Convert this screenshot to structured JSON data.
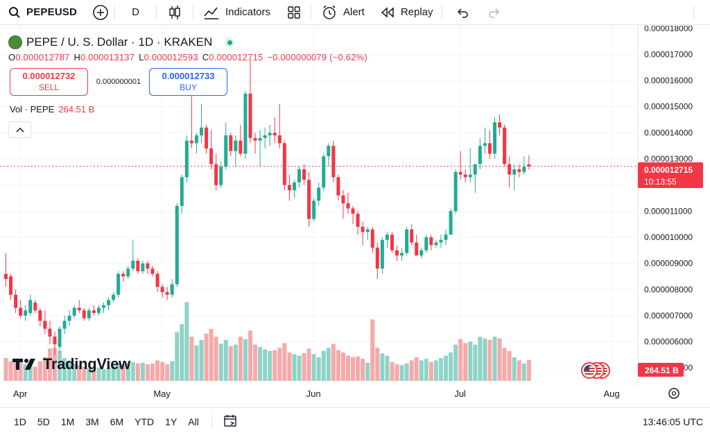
{
  "toolbar": {
    "symbol": "PEPEUSD",
    "interval": "D",
    "indicators_label": "Indicators",
    "alert_label": "Alert",
    "replay_label": "Replay"
  },
  "legend": {
    "title": "PEPE / U. S. Dollar · 1D · KRAKEN",
    "open_key": "O",
    "open": "0.000012787",
    "high_key": "H",
    "high": "0.000013137",
    "low_key": "L",
    "low": "0.000012593",
    "close_key": "C",
    "close": "0.000012715",
    "change": "−0.000000079 (−0.62%)"
  },
  "trade": {
    "sell_price": "0.000012732",
    "sell_label": "SELL",
    "spread": "0.000000001",
    "buy_price": "0.000012733",
    "buy_label": "BUY"
  },
  "volume_legend": {
    "label": "Vol · PEPE",
    "value": "264.51 B"
  },
  "brand": {
    "name": "TradingView"
  },
  "price_label": {
    "price": "0.000012715",
    "countdown": "10:13:55"
  },
  "volume_label": "264.51 B",
  "bottom": {
    "ranges": [
      "1D",
      "5D",
      "1M",
      "3M",
      "6M",
      "YTD",
      "1Y",
      "All"
    ],
    "clock": "13:46:05 UTC"
  },
  "colors": {
    "up": "#22ab94",
    "down": "#f23645",
    "up_vol": "#8fd3c7",
    "down_vol": "#f7a9a9",
    "accent": "#2962ff"
  },
  "chart_data": {
    "type": "candlestick",
    "y_axis_ticks": [
      "0.000018000",
      "0.000017000",
      "0.000016000",
      "0.000015000",
      "0.000014000",
      "0.000013000",
      "0.000012000",
      "0.000011000",
      "0.000010000",
      "0.000009000",
      "0.000008000",
      "0.000007000",
      "0.000006000",
      "0.000005000"
    ],
    "y_axis_values": [
      1.8e-05,
      1.7e-05,
      1.6e-05,
      1.5e-05,
      1.4e-05,
      1.3e-05,
      1.2e-05,
      1.1e-05,
      1e-05,
      9e-06,
      8e-06,
      7e-06,
      6e-06,
      5e-06
    ],
    "ylim": [
      4.9e-06,
      1.81e-05
    ],
    "x_axis_labels": [
      "Apr",
      "May",
      "Jun",
      "Jul",
      "Aug"
    ],
    "x_axis_label_index": [
      3,
      32,
      63,
      93,
      124
    ],
    "last_price": 1.2715e-05,
    "last_volume_B": 264.51,
    "volume_scale_max_B": 1100,
    "candles": [
      {
        "o": 8.6e-06,
        "h": 9.4e-06,
        "l": 8.1e-06,
        "c": 8.4e-06,
        "v": 290
      },
      {
        "o": 8.5e-06,
        "h": 8.6e-06,
        "l": 7.6e-06,
        "c": 7.8e-06,
        "v": 250
      },
      {
        "o": 7.8e-06,
        "h": 8e-06,
        "l": 7.1e-06,
        "c": 7.3e-06,
        "v": 260
      },
      {
        "o": 7.3e-06,
        "h": 7.6e-06,
        "l": 6.9e-06,
        "c": 7e-06,
        "v": 240
      },
      {
        "o": 7e-06,
        "h": 7.4e-06,
        "l": 6.8e-06,
        "c": 7.2e-06,
        "v": 210
      },
      {
        "o": 7.1e-06,
        "h": 7.8e-06,
        "l": 7e-06,
        "c": 7.6e-06,
        "v": 220
      },
      {
        "o": 7.5e-06,
        "h": 7.6e-06,
        "l": 7.1e-06,
        "c": 7.2e-06,
        "v": 180
      },
      {
        "o": 7.2e-06,
        "h": 7.3e-06,
        "l": 6.6e-06,
        "c": 6.8e-06,
        "v": 250
      },
      {
        "o": 6.8e-06,
        "h": 7.2e-06,
        "l": 6.3e-06,
        "c": 6.5e-06,
        "v": 300
      },
      {
        "o": 6.5e-06,
        "h": 6.8e-06,
        "l": 5.9e-06,
        "c": 6.2e-06,
        "v": 410
      },
      {
        "o": 6.2e-06,
        "h": 6.4e-06,
        "l": 5.5e-06,
        "c": 5.9e-06,
        "v": 420
      },
      {
        "o": 5.8e-06,
        "h": 6.6e-06,
        "l": 5.6e-06,
        "c": 6.5e-06,
        "v": 380
      },
      {
        "o": 6.5e-06,
        "h": 7e-06,
        "l": 6.3e-06,
        "c": 6.8e-06,
        "v": 290
      },
      {
        "o": 6.8e-06,
        "h": 7.2e-06,
        "l": 6.6e-06,
        "c": 7e-06,
        "v": 240
      },
      {
        "o": 7e-06,
        "h": 7.4e-06,
        "l": 6.9e-06,
        "c": 7.3e-06,
        "v": 220
      },
      {
        "o": 7.3e-06,
        "h": 7.6e-06,
        "l": 7.1e-06,
        "c": 7.2e-06,
        "v": 200
      },
      {
        "o": 7.2e-06,
        "h": 7.3e-06,
        "l": 6.8e-06,
        "c": 6.9e-06,
        "v": 180
      },
      {
        "o": 6.9e-06,
        "h": 7.3e-06,
        "l": 6.8e-06,
        "c": 7.2e-06,
        "v": 160
      },
      {
        "o": 7.2e-06,
        "h": 7.4e-06,
        "l": 7e-06,
        "c": 7.1e-06,
        "v": 150
      },
      {
        "o": 7.1e-06,
        "h": 7.4e-06,
        "l": 7e-06,
        "c": 7.3e-06,
        "v": 170
      },
      {
        "o": 7.3e-06,
        "h": 7.5e-06,
        "l": 7.1e-06,
        "c": 7.4e-06,
        "v": 150
      },
      {
        "o": 7.4e-06,
        "h": 7.7e-06,
        "l": 7.2e-06,
        "c": 7.6e-06,
        "v": 180
      },
      {
        "o": 7.6e-06,
        "h": 7.9e-06,
        "l": 7.5e-06,
        "c": 7.8e-06,
        "v": 190
      },
      {
        "o": 7.8e-06,
        "h": 8.7e-06,
        "l": 7.7e-06,
        "c": 8.6e-06,
        "v": 230
      },
      {
        "o": 8.6e-06,
        "h": 8.7e-06,
        "l": 8.3e-06,
        "c": 8.5e-06,
        "v": 210
      },
      {
        "o": 8.5e-06,
        "h": 8.9e-06,
        "l": 8.4e-06,
        "c": 8.8e-06,
        "v": 230
      },
      {
        "o": 8.8e-06,
        "h": 9.9e-06,
        "l": 8.7e-06,
        "c": 9.1e-06,
        "v": 240
      },
      {
        "o": 9.1e-06,
        "h": 9.2e-06,
        "l": 8.6e-06,
        "c": 8.7e-06,
        "v": 220
      },
      {
        "o": 8.7e-06,
        "h": 9.1e-06,
        "l": 8.6e-06,
        "c": 9e-06,
        "v": 230
      },
      {
        "o": 9e-06,
        "h": 9.1e-06,
        "l": 8.6e-06,
        "c": 8.8e-06,
        "v": 210
      },
      {
        "o": 8.8e-06,
        "h": 8.9e-06,
        "l": 8.5e-06,
        "c": 8.6e-06,
        "v": 220
      },
      {
        "o": 8.6e-06,
        "h": 8.7e-06,
        "l": 7.9e-06,
        "c": 8.1e-06,
        "v": 260
      },
      {
        "o": 8.1e-06,
        "h": 8.2e-06,
        "l": 7.7e-06,
        "c": 7.9e-06,
        "v": 240
      },
      {
        "o": 7.9e-06,
        "h": 8.1e-06,
        "l": 7.6e-06,
        "c": 7.8e-06,
        "v": 210
      },
      {
        "o": 7.8e-06,
        "h": 8.4e-06,
        "l": 7.7e-06,
        "c": 8.2e-06,
        "v": 250
      },
      {
        "o": 8.2e-06,
        "h": 1.13e-05,
        "l": 8.1e-06,
        "c": 1.12e-05,
        "v": 620
      },
      {
        "o": 1.12e-05,
        "h": 1.24e-05,
        "l": 1.09e-05,
        "c": 1.23e-05,
        "v": 720
      },
      {
        "o": 1.23e-05,
        "h": 1.39e-05,
        "l": 1.21e-05,
        "c": 1.37e-05,
        "v": 1000
      },
      {
        "o": 1.37e-05,
        "h": 1.54e-05,
        "l": 1.34e-05,
        "c": 1.36e-05,
        "v": 560
      },
      {
        "o": 1.36e-05,
        "h": 1.4e-05,
        "l": 1.32e-05,
        "c": 1.39e-05,
        "v": 450
      },
      {
        "o": 1.39e-05,
        "h": 1.51e-05,
        "l": 1.36e-05,
        "c": 1.42e-05,
        "v": 520
      },
      {
        "o": 1.42e-05,
        "h": 1.43e-05,
        "l": 1.32e-05,
        "c": 1.34e-05,
        "v": 600
      },
      {
        "o": 1.34e-05,
        "h": 1.41e-05,
        "l": 1.26e-05,
        "c": 1.28e-05,
        "v": 660
      },
      {
        "o": 1.28e-05,
        "h": 1.32e-05,
        "l": 1.18e-05,
        "c": 1.2e-05,
        "v": 560
      },
      {
        "o": 1.2e-05,
        "h": 1.29e-05,
        "l": 1.19e-05,
        "c": 1.27e-05,
        "v": 470
      },
      {
        "o": 1.27e-05,
        "h": 1.44e-05,
        "l": 1.26e-05,
        "c": 1.39e-05,
        "v": 520
      },
      {
        "o": 1.39e-05,
        "h": 1.4e-05,
        "l": 1.31e-05,
        "c": 1.33e-05,
        "v": 440
      },
      {
        "o": 1.33e-05,
        "h": 1.39e-05,
        "l": 1.27e-05,
        "c": 1.37e-05,
        "v": 460
      },
      {
        "o": 1.37e-05,
        "h": 1.43e-05,
        "l": 1.31e-05,
        "c": 1.32e-05,
        "v": 560
      },
      {
        "o": 1.32e-05,
        "h": 1.56e-05,
        "l": 1.3e-05,
        "c": 1.55e-05,
        "v": 530
      },
      {
        "o": 1.55e-05,
        "h": 1.68e-05,
        "l": 1.36e-05,
        "c": 1.38e-05,
        "v": 640
      },
      {
        "o": 1.38e-05,
        "h": 1.4e-05,
        "l": 1.32e-05,
        "c": 1.37e-05,
        "v": 460
      },
      {
        "o": 1.37e-05,
        "h": 1.41e-05,
        "l": 1.27e-05,
        "c": 1.38e-05,
        "v": 430
      },
      {
        "o": 1.38e-05,
        "h": 1.42e-05,
        "l": 1.34e-05,
        "c": 1.39e-05,
        "v": 400
      },
      {
        "o": 1.39e-05,
        "h": 1.43e-05,
        "l": 1.35e-05,
        "c": 1.4e-05,
        "v": 380
      },
      {
        "o": 1.4e-05,
        "h": 1.46e-05,
        "l": 1.36e-05,
        "c": 1.39e-05,
        "v": 390
      },
      {
        "o": 1.39e-05,
        "h": 1.51e-05,
        "l": 1.34e-05,
        "c": 1.36e-05,
        "v": 420
      },
      {
        "o": 1.36e-05,
        "h": 1.37e-05,
        "l": 1.18e-05,
        "c": 1.2e-05,
        "v": 480
      },
      {
        "o": 1.2e-05,
        "h": 1.24e-05,
        "l": 1.14e-05,
        "c": 1.18e-05,
        "v": 360
      },
      {
        "o": 1.18e-05,
        "h": 1.22e-05,
        "l": 1.15e-05,
        "c": 1.21e-05,
        "v": 340
      },
      {
        "o": 1.21e-05,
        "h": 1.27e-05,
        "l": 1.19e-05,
        "c": 1.26e-05,
        "v": 320
      },
      {
        "o": 1.26e-05,
        "h": 1.28e-05,
        "l": 1.2e-05,
        "c": 1.22e-05,
        "v": 350
      },
      {
        "o": 1.22e-05,
        "h": 1.25e-05,
        "l": 1.04e-05,
        "c": 1.07e-05,
        "v": 410
      },
      {
        "o": 1.07e-05,
        "h": 1.15e-05,
        "l": 1.06e-05,
        "c": 1.14e-05,
        "v": 340
      },
      {
        "o": 1.14e-05,
        "h": 1.21e-05,
        "l": 1.12e-05,
        "c": 1.19e-05,
        "v": 300
      },
      {
        "o": 1.19e-05,
        "h": 1.32e-05,
        "l": 1.18e-05,
        "c": 1.31e-05,
        "v": 380
      },
      {
        "o": 1.31e-05,
        "h": 1.36e-05,
        "l": 1.27e-05,
        "c": 1.35e-05,
        "v": 420
      },
      {
        "o": 1.35e-05,
        "h": 1.37e-05,
        "l": 1.21e-05,
        "c": 1.23e-05,
        "v": 470
      },
      {
        "o": 1.23e-05,
        "h": 1.24e-05,
        "l": 1.14e-05,
        "c": 1.16e-05,
        "v": 390
      },
      {
        "o": 1.16e-05,
        "h": 1.18e-05,
        "l": 1.07e-05,
        "c": 1.13e-05,
        "v": 360
      },
      {
        "o": 1.13e-05,
        "h": 1.17e-05,
        "l": 1.09e-05,
        "c": 1.11e-05,
        "v": 320
      },
      {
        "o": 1.11e-05,
        "h": 1.12e-05,
        "l": 1.05e-05,
        "c": 1.09e-05,
        "v": 300
      },
      {
        "o": 1.09e-05,
        "h": 1.1e-05,
        "l": 1.01e-05,
        "c": 1.04e-05,
        "v": 310
      },
      {
        "o": 1.04e-05,
        "h": 1.06e-05,
        "l": 9.7e-06,
        "c": 1.02e-05,
        "v": 280
      },
      {
        "o": 1.02e-05,
        "h": 1.04e-05,
        "l": 9.9e-06,
        "c": 1.03e-05,
        "v": 230
      },
      {
        "o": 1.03e-05,
        "h": 1.04e-05,
        "l": 9.4e-06,
        "c": 9.6e-06,
        "v": 780
      },
      {
        "o": 9.6e-06,
        "h": 9.8e-06,
        "l": 8.4e-06,
        "c": 8.8e-06,
        "v": 420
      },
      {
        "o": 8.8e-06,
        "h": 1e-05,
        "l": 8.6e-06,
        "c": 9.9e-06,
        "v": 350
      },
      {
        "o": 9.9e-06,
        "h": 1.02e-05,
        "l": 9.6e-06,
        "c": 1.01e-05,
        "v": 320
      },
      {
        "o": 1.01e-05,
        "h": 1.02e-05,
        "l": 9.4e-06,
        "c": 9.5e-06,
        "v": 240
      },
      {
        "o": 9.5e-06,
        "h": 9.7e-06,
        "l": 9.1e-06,
        "c": 9.3e-06,
        "v": 210
      },
      {
        "o": 9.3e-06,
        "h": 9.6e-06,
        "l": 9.1e-06,
        "c": 9.4e-06,
        "v": 200
      },
      {
        "o": 9.4e-06,
        "h": 1.04e-05,
        "l": 9.3e-06,
        "c": 1.03e-05,
        "v": 220
      },
      {
        "o": 1.03e-05,
        "h": 1.05e-05,
        "l": 9.7e-06,
        "c": 9.8e-06,
        "v": 260
      },
      {
        "o": 9.8e-06,
        "h": 1.01e-05,
        "l": 9.3e-06,
        "c": 9.3e-06,
        "v": 300
      },
      {
        "o": 9.3e-06,
        "h": 9.6e-06,
        "l": 9.2e-06,
        "c": 9.5e-06,
        "v": 260
      },
      {
        "o": 9.5e-06,
        "h": 1.01e-05,
        "l": 9.4e-06,
        "c": 1e-05,
        "v": 280
      },
      {
        "o": 1e-05,
        "h": 1.01e-05,
        "l": 9.5e-06,
        "c": 9.7e-06,
        "v": 240
      },
      {
        "o": 9.7e-06,
        "h": 9.9e-06,
        "l": 9.6e-06,
        "c": 9.8e-06,
        "v": 260
      },
      {
        "o": 9.8e-06,
        "h": 1.01e-05,
        "l": 9.6e-06,
        "c": 9.9e-06,
        "v": 290
      },
      {
        "o": 9.9e-06,
        "h": 1.03e-05,
        "l": 9.7e-06,
        "c": 1.01e-05,
        "v": 320
      },
      {
        "o": 1.01e-05,
        "h": 1.11e-05,
        "l": 1.01e-05,
        "c": 1.1e-05,
        "v": 360
      },
      {
        "o": 1.1e-05,
        "h": 1.26e-05,
        "l": 1.09e-05,
        "c": 1.25e-05,
        "v": 460
      },
      {
        "o": 1.25e-05,
        "h": 1.33e-05,
        "l": 1.22e-05,
        "c": 1.24e-05,
        "v": 530
      },
      {
        "o": 1.24e-05,
        "h": 1.26e-05,
        "l": 1.21e-05,
        "c": 1.23e-05,
        "v": 480
      },
      {
        "o": 1.23e-05,
        "h": 1.34e-05,
        "l": 1.21e-05,
        "c": 1.24e-05,
        "v": 500
      },
      {
        "o": 1.24e-05,
        "h": 1.28e-05,
        "l": 1.17e-05,
        "c": 1.28e-05,
        "v": 460
      },
      {
        "o": 1.28e-05,
        "h": 1.38e-05,
        "l": 1.26e-05,
        "c": 1.35e-05,
        "v": 560
      },
      {
        "o": 1.35e-05,
        "h": 1.42e-05,
        "l": 1.32e-05,
        "c": 1.36e-05,
        "v": 540
      },
      {
        "o": 1.36e-05,
        "h": 1.41e-05,
        "l": 1.3e-05,
        "c": 1.32e-05,
        "v": 520
      },
      {
        "o": 1.32e-05,
        "h": 1.46e-05,
        "l": 1.3e-05,
        "c": 1.44e-05,
        "v": 560
      },
      {
        "o": 1.44e-05,
        "h": 1.47e-05,
        "l": 1.39e-05,
        "c": 1.42e-05,
        "v": 540
      },
      {
        "o": 1.42e-05,
        "h": 1.43e-05,
        "l": 1.27e-05,
        "c": 1.28e-05,
        "v": 420
      },
      {
        "o": 1.28e-05,
        "h": 1.31e-05,
        "l": 1.19e-05,
        "c": 1.24e-05,
        "v": 380
      },
      {
        "o": 1.24e-05,
        "h": 1.28e-05,
        "l": 1.18e-05,
        "c": 1.26e-05,
        "v": 300
      },
      {
        "o": 1.26e-05,
        "h": 1.28e-05,
        "l": 1.23e-05,
        "c": 1.25e-05,
        "v": 260
      },
      {
        "o": 1.25e-05,
        "h": 1.31e-05,
        "l": 1.24e-05,
        "c": 1.27e-05,
        "v": 220
      },
      {
        "o": 1.2787e-05,
        "h": 1.3137e-05,
        "l": 1.2593e-05,
        "c": 1.2715e-05,
        "v": 264.51
      }
    ]
  }
}
